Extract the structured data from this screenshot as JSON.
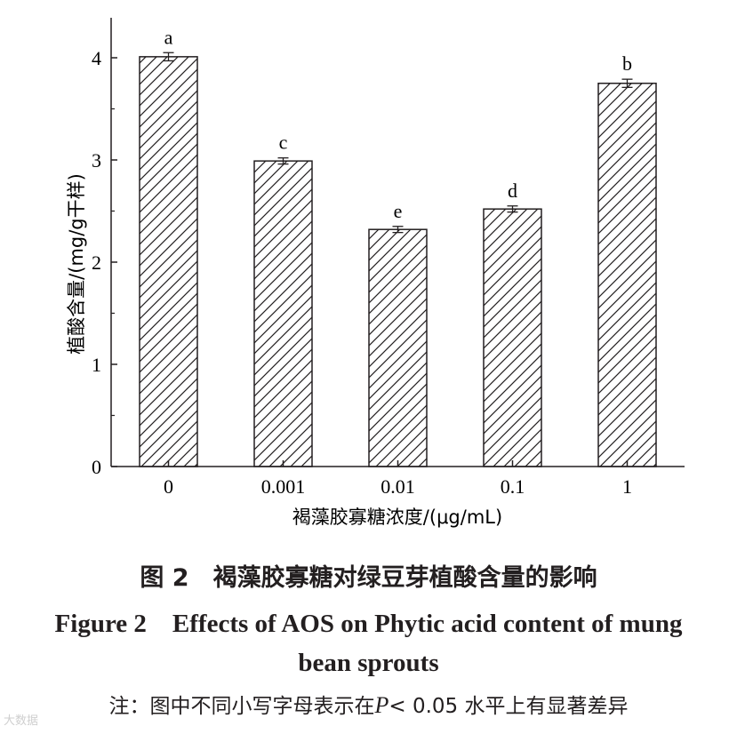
{
  "chart_data": {
    "type": "bar",
    "categories": [
      "0",
      "0.001",
      "0.01",
      "0.1",
      "1"
    ],
    "values": [
      4.01,
      2.99,
      2.32,
      2.52,
      3.75
    ],
    "errors": [
      0.04,
      0.03,
      0.03,
      0.03,
      0.04
    ],
    "significance": [
      "a",
      "c",
      "e",
      "d",
      "b"
    ],
    "xlabel": "褐藻胶寡糖浓度/(μg/mL)",
    "ylabel": "植酸含量/(mg/g干样)",
    "ylim": [
      0,
      4.5
    ],
    "yticks": [
      "0",
      "1",
      "2",
      "3",
      "4"
    ],
    "fill": "diagonal-hatch",
    "grid": false
  },
  "caption": {
    "cn": "图 2　褐藻胶寡糖对绿豆芽植酸含量的影响",
    "en_line1": "Figure 2　Effects of AOS on Phytic acid content of mung",
    "en_line2": "bean sprouts",
    "note_prefix": "注：图中不同小写字母表示在",
    "note_p": "P",
    "note_suffix": "< 0.05 水平上有显著差异"
  },
  "watermark": "大数据"
}
